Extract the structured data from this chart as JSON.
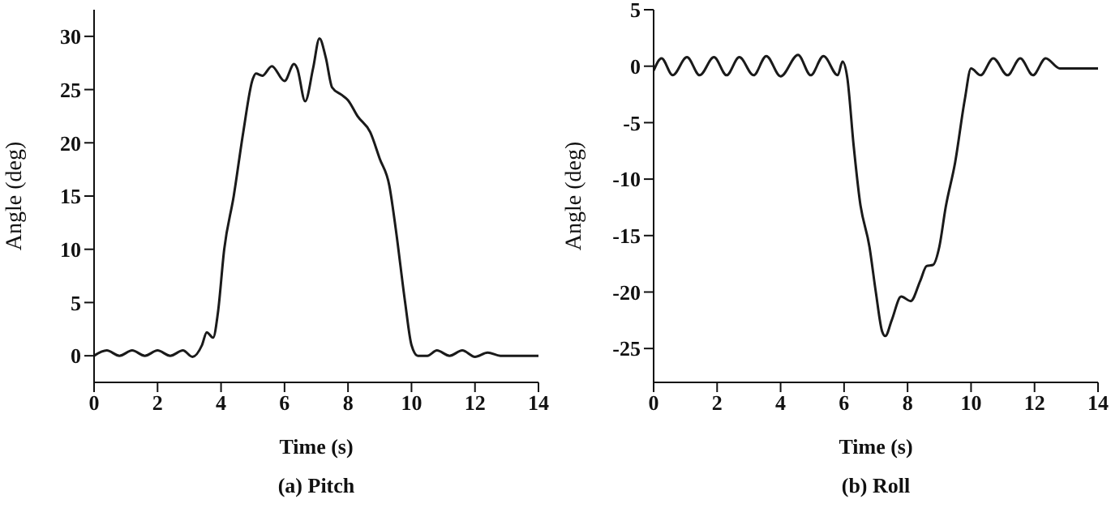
{
  "chart_data": [
    {
      "type": "line",
      "xlabel": "Time (s)",
      "ylabel": "Angle (deg)",
      "annotations": [
        "(a) Pitch"
      ],
      "xlim": [
        0,
        14
      ],
      "xticks": [
        0,
        2,
        4,
        6,
        8,
        10,
        12,
        14
      ],
      "ylim": [
        -2.5,
        32.5
      ],
      "yticks": [
        0,
        5,
        10,
        15,
        20,
        25,
        30
      ],
      "grid": false,
      "legend": false,
      "marker": "none",
      "line_style": "solid",
      "series": [
        {
          "color": "#1a1a1a",
          "x": [
            0,
            0.4,
            0.8,
            1.2,
            1.6,
            2.0,
            2.4,
            2.8,
            3.1,
            3.4,
            3.55,
            3.75,
            3.9,
            4.1,
            4.4,
            4.7,
            5.0,
            5.1,
            5.3,
            5.6,
            6.0,
            6.3,
            6.4,
            6.65,
            6.9,
            7.1,
            7.3,
            7.5,
            7.8,
            8.0,
            8.3,
            8.7,
            9.0,
            9.3,
            9.5,
            9.8,
            10.0,
            10.2,
            10.5,
            10.8,
            11.2,
            11.6,
            12.0,
            12.4,
            12.8,
            14
          ],
          "values": [
            0,
            0.5,
            0,
            0.5,
            0,
            0.5,
            0,
            0.5,
            -0.1,
            1.0,
            2.2,
            1.7,
            4,
            10,
            15,
            21,
            26,
            26.5,
            26.3,
            27.2,
            25.8,
            27.4,
            27,
            23.9,
            27,
            29.8,
            28,
            25.2,
            24.5,
            24,
            22.5,
            21,
            18.5,
            16,
            12,
            5,
            1,
            0,
            0,
            0.5,
            0,
            0.5,
            -0.1,
            0.3,
            0,
            0
          ]
        }
      ]
    },
    {
      "type": "line",
      "xlabel": "Time (s)",
      "ylabel": "Angle (deg)",
      "annotations": [
        "(b) Roll"
      ],
      "xlim": [
        0,
        14
      ],
      "xticks": [
        0,
        2,
        4,
        6,
        8,
        10,
        12,
        14
      ],
      "ylim": [
        -28,
        5
      ],
      "yticks": [
        -25,
        -20,
        -15,
        -10,
        -5,
        0,
        5
      ],
      "grid": false,
      "legend": false,
      "marker": "none",
      "line_style": "solid",
      "series": [
        {
          "color": "#1a1a1a",
          "x": [
            0,
            0.25,
            0.6,
            1.05,
            1.45,
            1.9,
            2.3,
            2.7,
            3.15,
            3.55,
            4.0,
            4.55,
            4.95,
            5.35,
            5.8,
            5.95,
            6.1,
            6.3,
            6.5,
            6.8,
            7.0,
            7.2,
            7.3,
            7.5,
            7.8,
            8.1,
            8.4,
            8.6,
            8.8,
            9.0,
            9.2,
            9.5,
            9.8,
            10.0,
            10.3,
            10.7,
            11.15,
            11.55,
            11.95,
            12.35,
            12.8,
            14
          ],
          "values": [
            -0.4,
            0.7,
            -0.8,
            0.8,
            -0.8,
            0.8,
            -0.8,
            0.8,
            -0.8,
            0.9,
            -0.9,
            1.0,
            -0.8,
            0.9,
            -0.8,
            0.4,
            -1,
            -7,
            -12,
            -16,
            -20,
            -23.5,
            -23.9,
            -22.5,
            -20.4,
            -20.8,
            -19,
            -17.7,
            -17.6,
            -16,
            -12.5,
            -8.5,
            -3,
            -0.2,
            -0.8,
            0.7,
            -0.8,
            0.7,
            -0.8,
            0.7,
            -0.2,
            -0.2
          ]
        }
      ]
    }
  ]
}
